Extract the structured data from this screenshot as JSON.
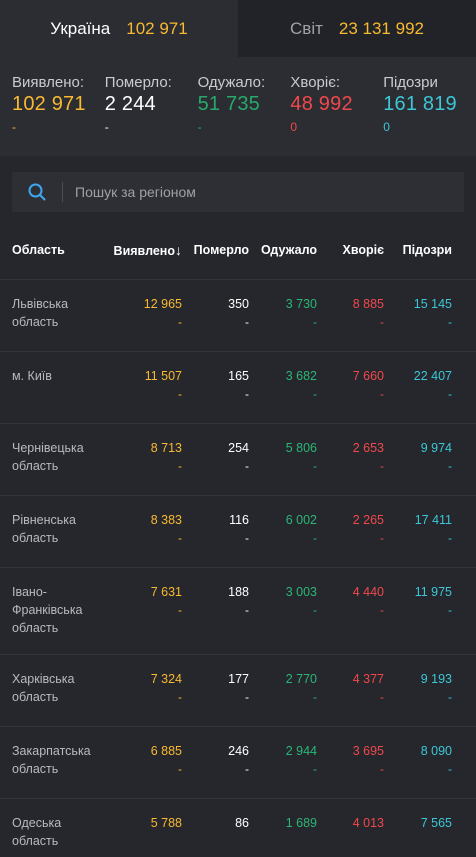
{
  "tabs": [
    {
      "label": "Україна",
      "value": "102 971"
    },
    {
      "label": "Світ",
      "value": "23 131 992"
    }
  ],
  "stats": [
    {
      "label": "Виявлено:",
      "value": "102 971",
      "delta": "-"
    },
    {
      "label": "Померло:",
      "value": "2 244",
      "delta": "-"
    },
    {
      "label": "Одужало:",
      "value": "51 735",
      "delta": "-"
    },
    {
      "label": "Хворіє:",
      "value": "48 992",
      "delta": "0"
    },
    {
      "label": "Підозри",
      "value": "161 819",
      "delta": "0"
    }
  ],
  "search": {
    "placeholder": "Пошук за регіоном"
  },
  "table": {
    "headers": [
      "Область",
      "Виявлено",
      "Померло",
      "Одужало",
      "Хворіє",
      "Підозри"
    ],
    "sort_arrow": "↓",
    "rows": [
      {
        "name": [
          "Львівська",
          "область"
        ],
        "detected": "12 965",
        "died": "350",
        "recovered": "3 730",
        "ill": "8 885",
        "suspected": "15 145",
        "delta": "-"
      },
      {
        "name": [
          "м. Київ"
        ],
        "detected": "11 507",
        "died": "165",
        "recovered": "3 682",
        "ill": "7 660",
        "suspected": "22 407",
        "delta": "-"
      },
      {
        "name": [
          "Чернівецька",
          "область"
        ],
        "detected": "8 713",
        "died": "254",
        "recovered": "5 806",
        "ill": "2 653",
        "suspected": "9 974",
        "delta": "-"
      },
      {
        "name": [
          "Рівненська",
          "область"
        ],
        "detected": "8 383",
        "died": "116",
        "recovered": "6 002",
        "ill": "2 265",
        "suspected": "17 411",
        "delta": "-"
      },
      {
        "name": [
          "Івано-",
          "Франківська",
          "область"
        ],
        "detected": "7 631",
        "died": "188",
        "recovered": "3 003",
        "ill": "4 440",
        "suspected": "11 975",
        "delta": "-"
      },
      {
        "name": [
          "Харківська",
          "область"
        ],
        "detected": "7 324",
        "died": "177",
        "recovered": "2 770",
        "ill": "4 377",
        "suspected": "9 193",
        "delta": "-"
      },
      {
        "name": [
          "Закарпатська",
          "область"
        ],
        "detected": "6 885",
        "died": "246",
        "recovered": "2 944",
        "ill": "3 695",
        "suspected": "8 090",
        "delta": "-"
      },
      {
        "name": [
          "Одеська область"
        ],
        "detected": "5 788",
        "died": "86",
        "recovered": "1 689",
        "ill": "4 013",
        "suspected": "7 565",
        "delta": ""
      }
    ]
  },
  "colors": {
    "detected": "#f9b930",
    "died": "#ffffff",
    "recovered": "#2bb673",
    "ill": "#f0484b",
    "suspected": "#3cc7d6",
    "background": "#25272d"
  }
}
